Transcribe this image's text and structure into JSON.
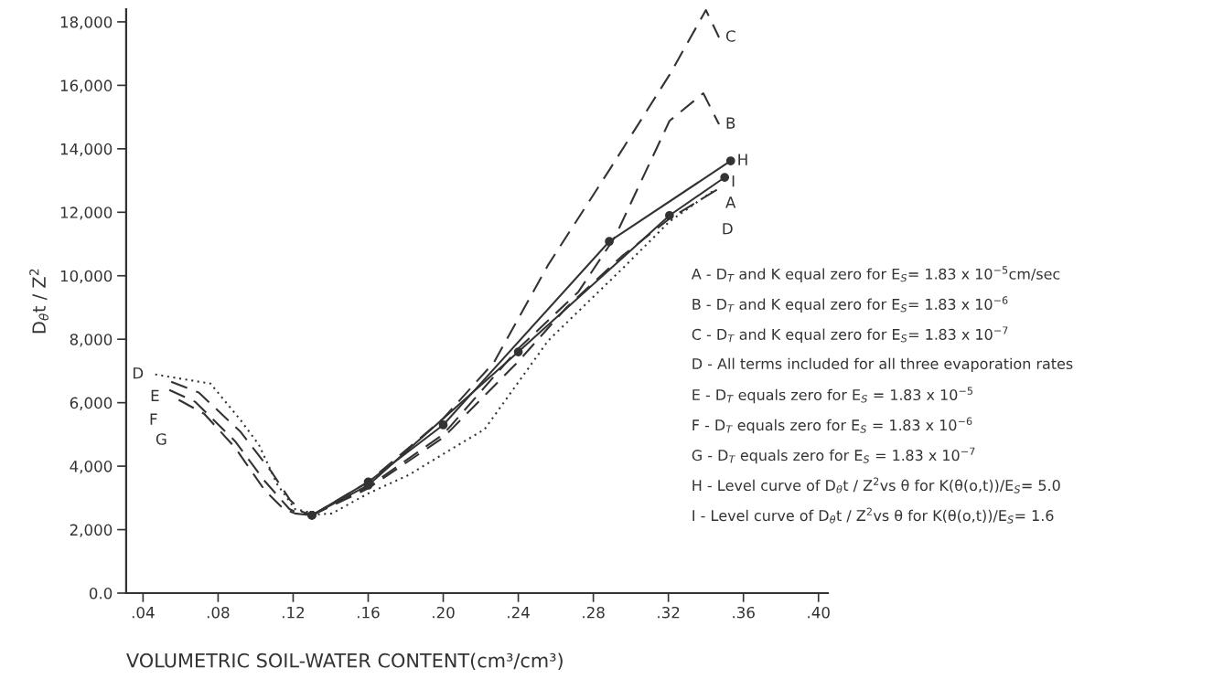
{
  "chart_data": {
    "type": "line",
    "xlabel": "VOLUMETRIC SOIL-WATER CONTENT(cm³/cm³)",
    "ylabel": "D$_{θ}$t / Z$^{2}$",
    "xlim": [
      0.031,
      0.405
    ],
    "ylim": [
      0,
      18400
    ],
    "xticks": [
      {
        "value": 0.04,
        "label": ".04"
      },
      {
        "value": 0.08,
        "label": ".08"
      },
      {
        "value": 0.12,
        "label": ".12"
      },
      {
        "value": 0.16,
        "label": ".16"
      },
      {
        "value": 0.2,
        "label": ".20"
      },
      {
        "value": 0.24,
        "label": ".24"
      },
      {
        "value": 0.28,
        "label": ".28"
      },
      {
        "value": 0.32,
        "label": ".32"
      },
      {
        "value": 0.36,
        "label": ".36"
      },
      {
        "value": 0.4,
        "label": ".40"
      }
    ],
    "yticks": [
      {
        "value": 0,
        "label": "0.0"
      },
      {
        "value": 2000,
        "label": "2,000"
      },
      {
        "value": 4000,
        "label": "4,000"
      },
      {
        "value": 6000,
        "label": "6,000"
      },
      {
        "value": 8000,
        "label": "8,000"
      },
      {
        "value": 10000,
        "label": "10,000"
      },
      {
        "value": 12000,
        "label": "12,000"
      },
      {
        "value": 14000,
        "label": "14,000"
      },
      {
        "value": 16000,
        "label": "16,000"
      },
      {
        "value": 18000,
        "label": "18,000"
      }
    ],
    "grid": false,
    "legend": false,
    "series": [
      {
        "name": "A",
        "color": "#333333",
        "line_style": "dashed",
        "x": [
          0.13,
          0.16,
          0.2,
          0.24,
          0.2657,
          0.2949,
          0.3206,
          0.347
        ],
        "values": [
          2450,
          3300,
          4900,
          7300,
          9000,
          10600,
          11800,
          12750
        ]
      },
      {
        "name": "B",
        "color": "#333333",
        "line_style": "dashed",
        "x": [
          0.13,
          0.16,
          0.2,
          0.24,
          0.272,
          0.2915,
          0.3206,
          0.3386,
          0.347
        ],
        "values": [
          2450,
          3350,
          5000,
          7700,
          9490,
          11220,
          14880,
          15750,
          14770
        ]
      },
      {
        "name": "C",
        "color": "#333333",
        "line_style": "dashed",
        "x": [
          0.13,
          0.16,
          0.2,
          0.227,
          0.256,
          0.2885,
          0.3206,
          0.34,
          0.347
        ],
        "values": [
          2450,
          3500,
          5500,
          7270,
          10350,
          13330,
          16330,
          18370,
          17510
        ]
      },
      {
        "name": "D",
        "color": "#333333",
        "line_style": "dotted",
        "x": [
          0.0465,
          0.076,
          0.092,
          0.1018,
          0.1115,
          0.121,
          0.133,
          0.1407,
          0.16,
          0.1815,
          0.2058,
          0.222,
          0.256,
          0.2963,
          0.3206,
          0.345
        ],
        "values": [
          6890,
          6600,
          5450,
          4670,
          3430,
          2650,
          2480,
          2510,
          3140,
          3720,
          4590,
          5160,
          7960,
          10270,
          11710,
          12720
        ]
      },
      {
        "name": "E",
        "color": "#333333",
        "line_style": "dashed",
        "x": [
          0.055,
          0.0697,
          0.092,
          0.1086,
          0.1183,
          0.1246,
          0.13
        ],
        "values": [
          6660,
          6320,
          5080,
          3810,
          2940,
          2570,
          2450
        ]
      },
      {
        "name": "F",
        "color": "#333333",
        "line_style": "dashed",
        "x": [
          0.054,
          0.0677,
          0.089,
          0.105,
          0.118,
          0.123,
          0.13
        ],
        "values": [
          6400,
          6030,
          4790,
          3520,
          2650,
          2510,
          2450
        ]
      },
      {
        "name": "G",
        "color": "#333333",
        "line_style": "dashed",
        "x": [
          0.059,
          0.0726,
          0.089,
          0.105,
          0.115,
          0.121,
          0.13
        ],
        "values": [
          6090,
          5650,
          4590,
          3230,
          2650,
          2510,
          2450
        ]
      },
      {
        "name": "H",
        "color": "#333333",
        "line_style": "solid",
        "marker": "circle",
        "x": [
          0.13,
          0.16,
          0.2,
          0.2885,
          0.3532
        ],
        "values": [
          2450,
          3500,
          5300,
          11080,
          13620
        ]
      },
      {
        "name": "I",
        "color": "#333333",
        "line_style": "solid",
        "marker": "circle",
        "x": [
          0.13,
          0.16,
          0.24,
          0.3206,
          0.35
        ],
        "values": [
          2450,
          3400,
          7600,
          11900,
          13100
        ]
      }
    ],
    "annotations": [
      "A - D$_{T}$ and K equal zero for E$_{S}$= 1.83 x 10$^{−5}$cm/sec",
      "B - D$_{T}$ and K equal zero for E$_{S}$= 1.83 x 10$^{−6}$",
      "C - D$_{T}$ and K equal zero for E$_{S}$= 1.83 x 10$^{−7}$",
      "D - All terms included for all three evaporation rates",
      "E - D$_{T}$ equals zero for E$_{S}$ = 1.83 x 10$^{−5}$",
      "F - D$_{T}$ equals zero for E$_{S}$ = 1.83 x 10$^{−6}$",
      "G - D$_{T}$ equals zero for E$_{S}$ = 1.83 x 10$^{−7}$",
      "H - Level curve of D$_{θ}$t / Z$^{2}$vs θ for K(θ(o,t))/E$_{S}$= 5.0",
      "I - Level curve of D$_{θ}$t / Z$^{2}$vs θ for K(θ(o,t))/E$_{S}$= 1.6"
    ]
  }
}
